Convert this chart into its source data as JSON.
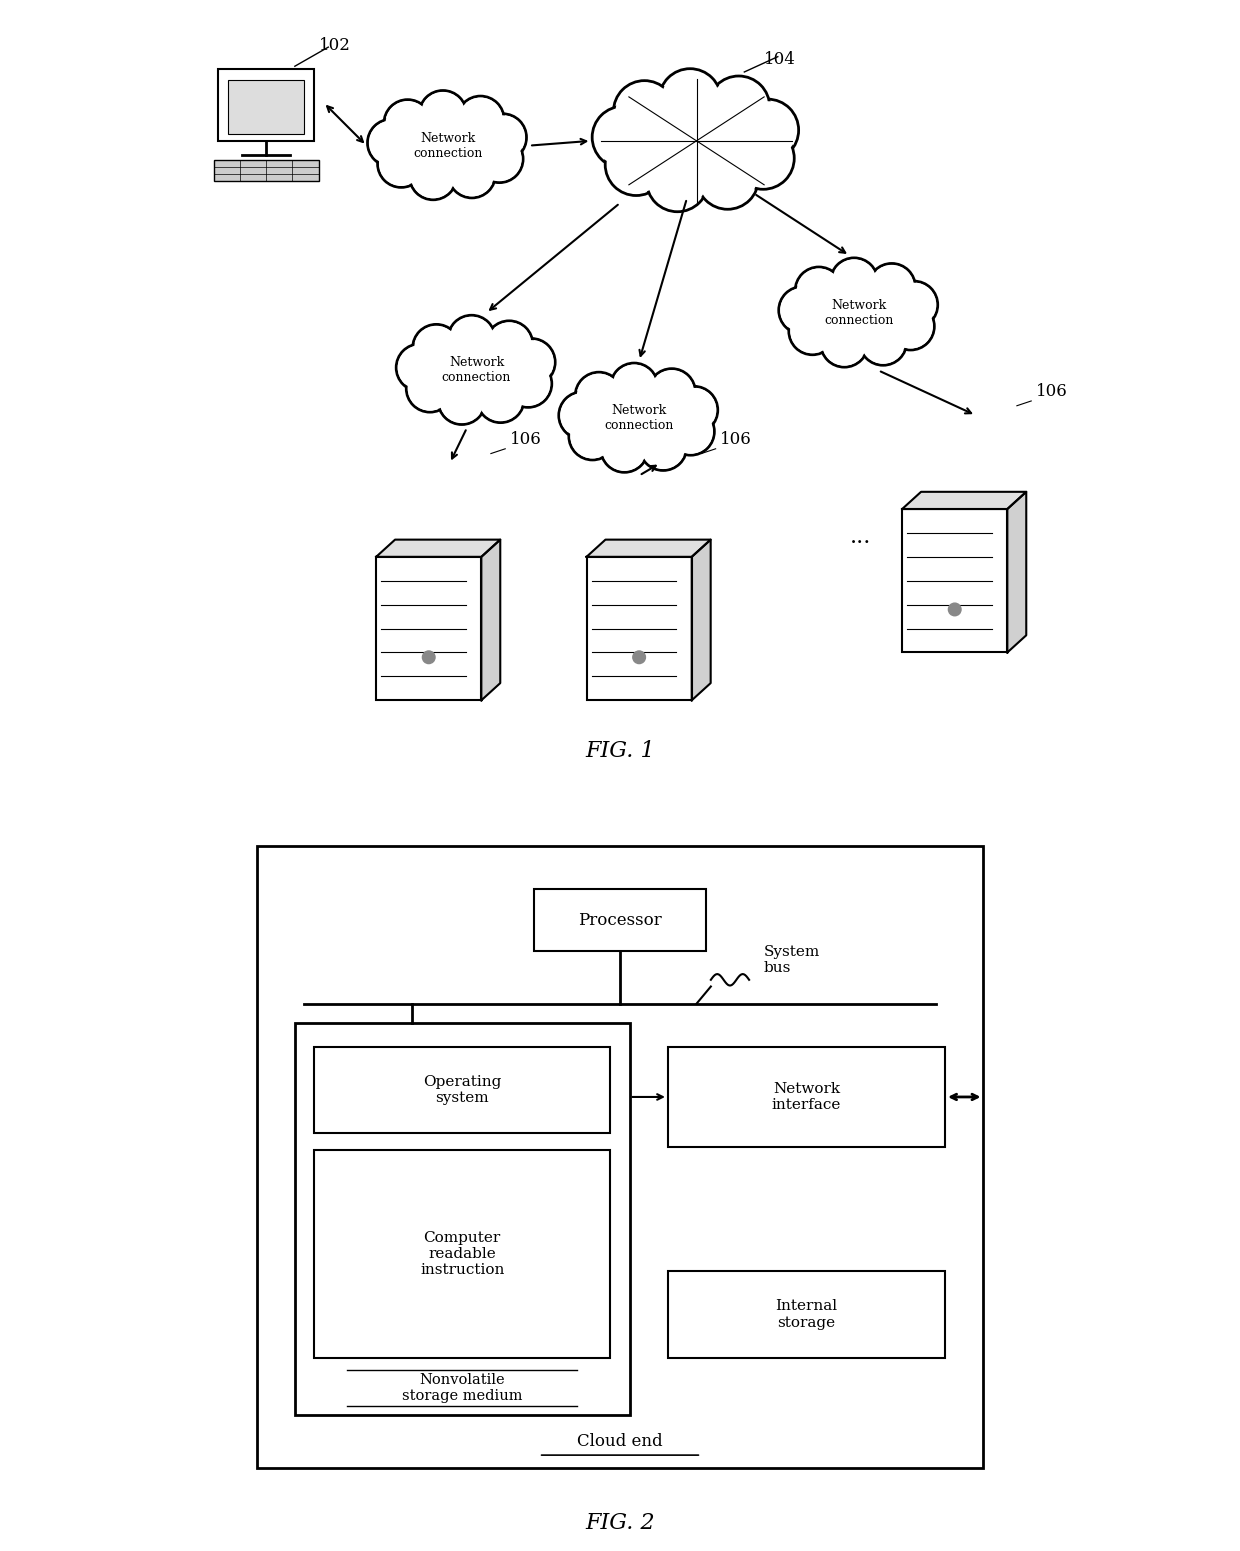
{
  "fig1_label": "FIG. 1",
  "fig2_label": "FIG. 2",
  "bg_color": "#ffffff",
  "line_color": "#000000",
  "label_102": "102",
  "label_104": "104",
  "label_106_1": "106",
  "label_106_2": "106",
  "label_106_3": "106",
  "cloud_text": "Network\nconnection",
  "processor_text": "Processor",
  "system_bus_text": "System\nbus",
  "os_text": "Operating\nsystem",
  "cri_text": "Computer\nreadable\ninstruction",
  "nvsm_text": "Nonvolatile\nstorage medium",
  "ni_text": "Network\ninterface",
  "is_text": "Internal\nstorage",
  "cloud_end_text": "Cloud end",
  "dots_text": "..."
}
